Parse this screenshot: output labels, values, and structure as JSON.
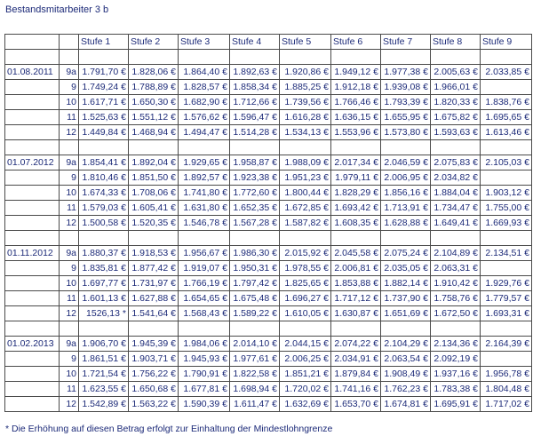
{
  "title": "Bestandsmitarbeiter 3 b",
  "table": {
    "header": [
      "Stufe 1",
      "Stufe 2",
      "Stufe 3",
      "Stufe 4",
      "Stufe 5",
      "Stufe 6",
      "Stufe 7",
      "Stufe 8",
      "Stufe 9"
    ],
    "groups": [
      {
        "date": "01.08.2011",
        "rows": [
          {
            "grade": "9a",
            "cells": [
              "1.791,70 €",
              "1.828,06 €",
              "1.864,40 €",
              "1.892,63 €",
              "1.920,86 €",
              "1.949,12 €",
              "1.977,38 €",
              "2.005,63 €",
              "2.033,85 €"
            ]
          },
          {
            "grade": "9",
            "cells": [
              "1.749,24 €",
              "1.788,89 €",
              "1.828,57 €",
              "1.858,34 €",
              "1.885,25 €",
              "1.912,18 €",
              "1.939,08 €",
              "1.966,01 €",
              null
            ]
          },
          {
            "grade": "10",
            "cells": [
              "1.617,71 €",
              "1.650,30 €",
              "1.682,90 €",
              "1.712,66 €",
              "1.739,56 €",
              "1.766,46 €",
              "1.793,39 €",
              "1.820,33 €",
              "1.838,76 €"
            ]
          },
          {
            "grade": "11",
            "cells": [
              "1.525,63 €",
              "1.551,12 €",
              "1.576,62 €",
              "1.596,47 €",
              "1.616,28 €",
              "1.636,15 €",
              "1.655,95 €",
              "1.675,82 €",
              "1.695,65 €"
            ]
          },
          {
            "grade": "12",
            "cells": [
              "1.449,84 €",
              "1.468,94 €",
              "1.494,47 €",
              "1.514,28 €",
              "1.534,13 €",
              "1.553,96 €",
              "1.573,80 €",
              "1.593,63 €",
              "1.613,46 €"
            ]
          }
        ]
      },
      {
        "date": "01.07.2012",
        "rows": [
          {
            "grade": "9a",
            "cells": [
              "1.854,41 €",
              "1.892,04 €",
              "1.929,65 €",
              "1.958,87 €",
              "1.988,09 €",
              "2.017,34 €",
              "2.046,59 €",
              "2.075,83 €",
              "2.105,03 €"
            ]
          },
          {
            "grade": "9",
            "cells": [
              "1.810,46 €",
              "1.851,50 €",
              "1.892,57 €",
              "1.923,38 €",
              "1.951,23 €",
              "1.979,11 €",
              "2.006,95 €",
              "2.034,82 €",
              null
            ]
          },
          {
            "grade": "10",
            "cells": [
              "1.674,33 €",
              "1.708,06 €",
              "1.741,80 €",
              "1.772,60 €",
              "1.800,44 €",
              "1.828,29 €",
              "1.856,16 €",
              "1.884,04 €",
              "1.903,12 €"
            ]
          },
          {
            "grade": "11",
            "cells": [
              "1.579,03 €",
              "1.605,41 €",
              "1.631,80 €",
              "1.652,35 €",
              "1.672,85 €",
              "1.693,42 €",
              "1.713,91 €",
              "1.734,47 €",
              "1.755,00 €"
            ]
          },
          {
            "grade": "12",
            "cells": [
              "1.500,58 €",
              "1.520,35 €",
              "1.546,78 €",
              "1.567,28 €",
              "1.587,82 €",
              "1.608,35 €",
              "1.628,88 €",
              "1.649,41 €",
              "1.669,93 €"
            ]
          }
        ]
      },
      {
        "date": "01.11.2012",
        "rows": [
          {
            "grade": "9a",
            "cells": [
              "1.880,37 €",
              "1.918,53 €",
              "1.956,67 €",
              "1.986,30 €",
              "2.015,92 €",
              "2.045,58 €",
              "2.075,24 €",
              "2.104,89 €",
              "2.134,51 €"
            ]
          },
          {
            "grade": "9",
            "cells": [
              "1.835,81 €",
              "1.877,42 €",
              "1.919,07 €",
              "1.950,31 €",
              "1.978,55 €",
              "2.006,81 €",
              "2.035,05 €",
              "2.063,31 €",
              null
            ]
          },
          {
            "grade": "10",
            "cells": [
              "1.697,77 €",
              "1.731,97 €",
              "1.766,19 €",
              "1.797,42 €",
              "1.825,65 €",
              "1.853,88 €",
              "1.882,14 €",
              "1.910,42 €",
              "1.929,76 €"
            ]
          },
          {
            "grade": "11",
            "cells": [
              "1.601,13 €",
              "1.627,88 €",
              "1.654,65 €",
              "1.675,48 €",
              "1.696,27 €",
              "1.717,12 €",
              "1.737,90 €",
              "1.758,76 €",
              "1.779,57 €"
            ]
          },
          {
            "grade": "12",
            "cells": [
              "1526,13 *",
              "1.541,64 €",
              "1.568,43 €",
              "1.589,22 €",
              "1.610,05 €",
              "1.630,87 €",
              "1.651,69 €",
              "1.672,50 €",
              "1.693,31 €"
            ]
          }
        ]
      },
      {
        "date": "01.02.2013",
        "rows": [
          {
            "grade": "9a",
            "cells": [
              "1.906,70 €",
              "1.945,39 €",
              "1.984,06 €",
              "2.014,10 €",
              "2.044,15 €",
              "2.074,22 €",
              "2.104,29 €",
              "2.134,36 €",
              "2.164,39 €"
            ]
          },
          {
            "grade": "9",
            "cells": [
              "1.861,51 €",
              "1.903,71 €",
              "1.945,93 €",
              "1.977,61 €",
              "2.006,25 €",
              "2.034,91 €",
              "2.063,54 €",
              "2.092,19 €",
              null
            ]
          },
          {
            "grade": "10",
            "cells": [
              "1.721,54 €",
              "1.756,22 €",
              "1.790,91 €",
              "1.822,58 €",
              "1.851,21 €",
              "1.879,84 €",
              "1.908,49 €",
              "1.937,16 €",
              "1.956,78 €"
            ]
          },
          {
            "grade": "11",
            "cells": [
              "1.623,55 €",
              "1.650,68 €",
              "1.677,81 €",
              "1.698,94 €",
              "1.720,02 €",
              "1.741,16 €",
              "1.762,23 €",
              "1.783,38 €",
              "1.804,48 €"
            ]
          },
          {
            "grade": "12",
            "cells": [
              "1.542,89 €",
              "1.563,22 €",
              "1.590,39 €",
              "1.611,47 €",
              "1.632,69 €",
              "1.653,70 €",
              "1.674,81 €",
              "1.695,91 €",
              "1.717,02 €"
            ]
          }
        ]
      }
    ]
  },
  "footnote": "* Die Erhöhung auf diesen Betrag erfolgt zur Einhaltung der Mindestlohngrenze"
}
